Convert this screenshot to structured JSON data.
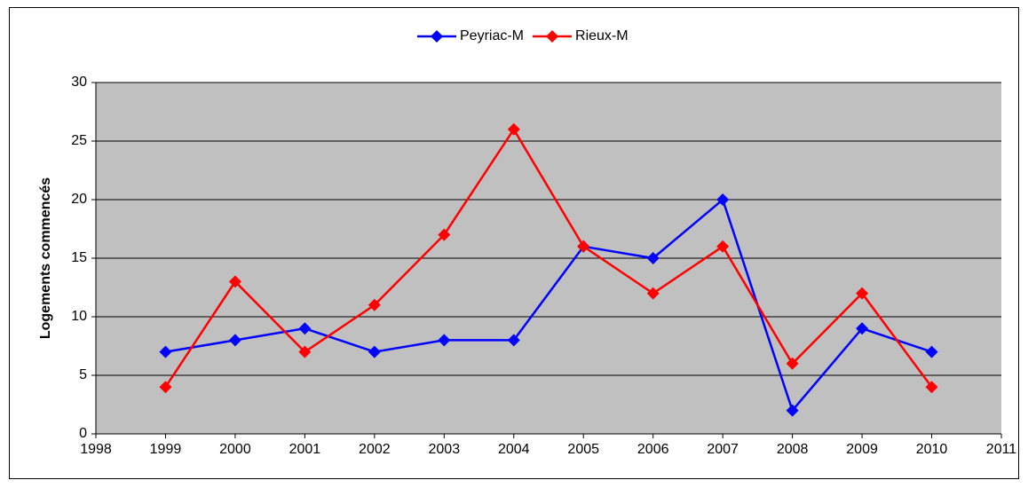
{
  "chart_data": {
    "type": "line",
    "y_label": "Logements commencés",
    "x": [
      1999,
      2000,
      2001,
      2002,
      2003,
      2004,
      2005,
      2006,
      2007,
      2008,
      2009,
      2010
    ],
    "series": [
      {
        "name": "Peyriac-M",
        "color": "#0000ff",
        "values": [
          7,
          8,
          9,
          7,
          8,
          8,
          16,
          15,
          20,
          2,
          9,
          7
        ]
      },
      {
        "name": "Rieux-M",
        "color": "#ff0000",
        "values": [
          4,
          13,
          7,
          11,
          17,
          26,
          16,
          12,
          16,
          6,
          12,
          4
        ]
      }
    ],
    "xlim": [
      1998,
      2011
    ],
    "xticks": [
      1998,
      1999,
      2000,
      2001,
      2002,
      2003,
      2004,
      2005,
      2006,
      2007,
      2008,
      2009,
      2010,
      2011
    ],
    "ylim": [
      0,
      30
    ],
    "yticks": [
      0,
      5,
      10,
      15,
      20,
      25,
      30
    ],
    "grid": true,
    "legend": "top",
    "plot_background": "#c0c0c0"
  }
}
